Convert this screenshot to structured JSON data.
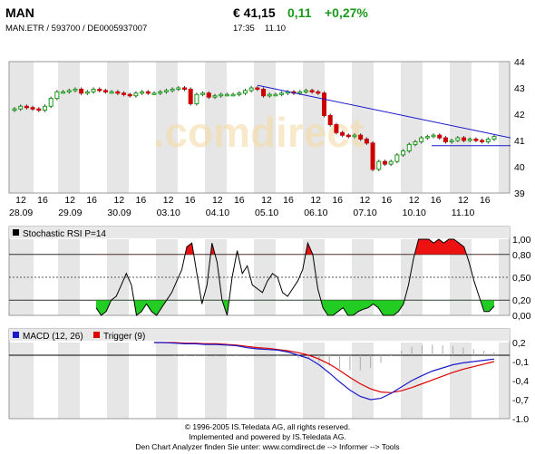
{
  "header": {
    "ticker": "MAN",
    "ids": "MAN.ETR  /  593700  /  DE0005937007",
    "price": "€ 41,15",
    "change": "0,11",
    "change_pct": "+0,27%",
    "time": "17:35",
    "date": "11.10"
  },
  "footer": {
    "line1": "© 1996-2005 IS.Teledata AG, all rights reserved.",
    "line2": "Implemented and powered by IS.Teledata AG.",
    "line3": "Den Chart Analyzer finden Sie unter: www.comdirect.de --> Informer --> Tools"
  },
  "watermark": ".comdirect",
  "colors": {
    "up": "#1a9a1a",
    "down": "#cc0000",
    "trend": "#1a1acc",
    "macd": "#1a1acc",
    "trigger": "#dd0000",
    "band": "#e6e6e6"
  },
  "chart_data": [
    {
      "type": "candlestick",
      "x_tick_labels": [
        "12",
        "16",
        "12",
        "16",
        "12",
        "16",
        "12",
        "16",
        "12",
        "16",
        "12",
        "16",
        "12",
        "16",
        "12",
        "16",
        "12",
        "16",
        "12",
        "16"
      ],
      "date_labels": [
        "28.09",
        "29.09",
        "30.09",
        "03.10",
        "04.10",
        "05.10",
        "06.10",
        "07.10",
        "10.10",
        "11.10"
      ],
      "y_ticks": [
        "44",
        "43",
        "42",
        "41",
        "40",
        "39"
      ],
      "ylim": [
        39,
        44
      ],
      "close": [
        42.2,
        42.3,
        42.25,
        42.2,
        42.15,
        42.3,
        42.6,
        42.85,
        42.85,
        42.9,
        42.95,
        42.8,
        42.85,
        42.95,
        42.9,
        42.85,
        42.85,
        42.8,
        42.75,
        42.7,
        42.8,
        42.85,
        42.8,
        42.8,
        42.85,
        42.9,
        42.95,
        43.0,
        42.95,
        42.4,
        42.75,
        42.8,
        42.65,
        42.7,
        42.75,
        42.75,
        42.75,
        42.8,
        42.9,
        43.0,
        42.95,
        42.7,
        42.75,
        42.75,
        42.8,
        42.85,
        42.8,
        42.85,
        42.9,
        42.85,
        42.8,
        41.95,
        41.6,
        41.3,
        41.2,
        41.15,
        41.2,
        41.05,
        40.9,
        39.9,
        40.2,
        40.1,
        40.2,
        40.45,
        40.6,
        40.85,
        40.95,
        41.1,
        41.15,
        41.2,
        41.1,
        40.95,
        41.0,
        41.1,
        41.0,
        41.05,
        41.0,
        40.95,
        41.05,
        41.15
      ],
      "trendline_label": "",
      "overlay": "trendline"
    },
    {
      "type": "line",
      "title": "Stochastic RSI P=14",
      "y_ticks": [
        "1,00",
        "0,80",
        "0,50",
        "0,20",
        "0,00"
      ],
      "ylim": [
        0,
        1
      ],
      "thresholds": [
        0.2,
        0.8
      ],
      "values": [
        0.1,
        0.0,
        0.05,
        0.2,
        0.25,
        0.4,
        0.55,
        0.4,
        0.0,
        0.05,
        0.15,
        0.05,
        0.0,
        0.1,
        0.2,
        0.3,
        0.45,
        0.6,
        0.9,
        0.95,
        0.55,
        0.15,
        0.4,
        0.95,
        0.7,
        0.2,
        0.0,
        0.5,
        0.85,
        0.55,
        0.65,
        0.4,
        0.35,
        0.3,
        0.45,
        0.55,
        0.5,
        0.3,
        0.25,
        0.35,
        0.45,
        0.6,
        0.95,
        0.8,
        0.35,
        0.1,
        0.0,
        0.0,
        0.05,
        0.1,
        0.0,
        0.0,
        0.05,
        0.08,
        0.1,
        0.15,
        0.1,
        0.0,
        0.0,
        0.0,
        0.05,
        0.15,
        0.4,
        0.75,
        1.0,
        1.0,
        1.0,
        0.95,
        1.0,
        0.95,
        1.0,
        1.0,
        0.95,
        0.9,
        0.7,
        0.45,
        0.25,
        0.05,
        0.05,
        0.12
      ]
    },
    {
      "type": "line",
      "title": "MACD (12, 26)",
      "series": [
        {
          "name": "MACD (12, 26)",
          "values": [
            0.2,
            0.2,
            0.19,
            0.18,
            0.18,
            0.17,
            0.17,
            0.16,
            0.15,
            0.12,
            0.1,
            0.09,
            0.08,
            0.05,
            0.0,
            -0.05,
            -0.15,
            -0.28,
            -0.42,
            -0.55,
            -0.65,
            -0.7,
            -0.68,
            -0.6,
            -0.5,
            -0.4,
            -0.32,
            -0.25,
            -0.2,
            -0.15,
            -0.12,
            -0.1,
            -0.08,
            -0.06
          ]
        },
        {
          "name": "Trigger (9)",
          "values": [
            0.2,
            0.2,
            0.2,
            0.19,
            0.19,
            0.18,
            0.18,
            0.17,
            0.16,
            0.14,
            0.12,
            0.11,
            0.09,
            0.07,
            0.04,
            0.0,
            -0.06,
            -0.14,
            -0.24,
            -0.35,
            -0.45,
            -0.53,
            -0.58,
            -0.59,
            -0.56,
            -0.51,
            -0.45,
            -0.39,
            -0.33,
            -0.27,
            -0.22,
            -0.18,
            -0.14,
            -0.1
          ]
        }
      ],
      "y_ticks": [
        "0,2",
        "-0,1",
        "-0,4",
        "-0,7",
        "-1,0"
      ],
      "ylim": [
        -1.0,
        0.2
      ]
    }
  ]
}
